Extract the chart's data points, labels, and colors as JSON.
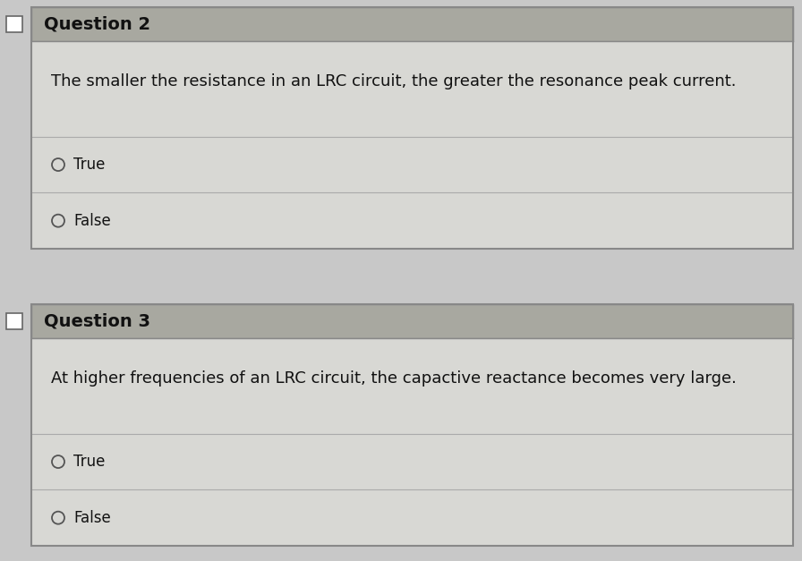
{
  "bg_color": "#c8c8c8",
  "header_bg": "#a8a8a0",
  "content_bg": "#d8d8d4",
  "row_bg": "#d0d0cc",
  "border_color": "#888888",
  "line_color": "#aaaaaa",
  "text_color": "#111111",
  "question2_title": "Question 2",
  "question2_body": "The smaller the resistance in an LRC circuit, the greater the resonance peak current.",
  "question2_opt1": "True",
  "question2_opt2": "False",
  "question3_title": "Question 3",
  "question3_body": "At higher frequencies of an LRC circuit, the capactive reactance becomes very large.",
  "question3_opt1": "True",
  "question3_opt2": "False",
  "title_fontsize": 14,
  "body_fontsize": 13,
  "option_fontsize": 12,
  "figwidth": 8.96,
  "figheight": 6.27,
  "dpi": 100
}
